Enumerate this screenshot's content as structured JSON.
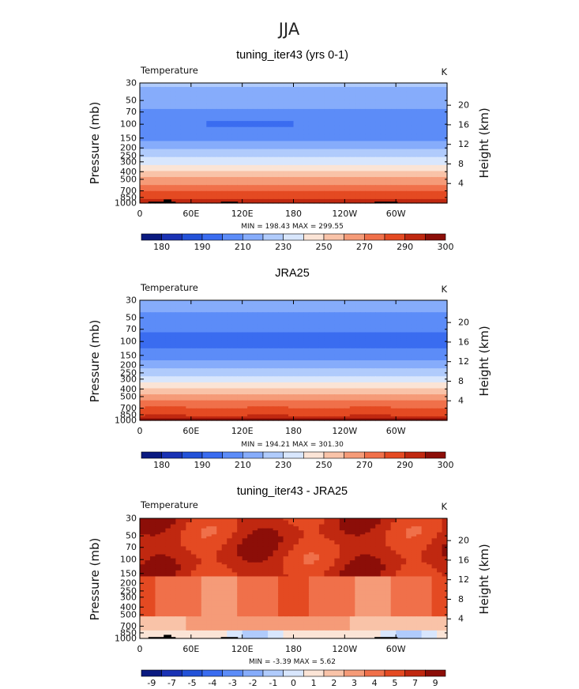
{
  "figure": {
    "title": "JJA"
  },
  "colors": {
    "abs_palette": [
      "#0a1a80",
      "#1a32b4",
      "#2352d8",
      "#3a6cf0",
      "#5c8cf8",
      "#86acfb",
      "#b0cbfc",
      "#d8e6fd",
      "#fbe4d6",
      "#f9c3a8",
      "#f59b78",
      "#f0704a",
      "#e44a22",
      "#c02810",
      "#8c0e08"
    ],
    "diff_palette": [
      "#0a1a80",
      "#1a32b4",
      "#2352d8",
      "#3a6cf0",
      "#5c8cf8",
      "#86acfb",
      "#b0cbfc",
      "#d8e6fd",
      "#fbe4d6",
      "#f9c3a8",
      "#f59b78",
      "#f0704a",
      "#e44a22",
      "#c02810",
      "#8c0e08"
    ]
  },
  "chart_data": [
    {
      "type": "heatmap",
      "title": "tuning_iter43 (yrs 0-1)",
      "variable_label": "Temperature",
      "units_label": "K",
      "ylabel": "Pressure (mb)",
      "ylabel_right": "Height (km)",
      "x_ticks": [
        "0",
        "60E",
        "120E",
        "180",
        "120W",
        "60W"
      ],
      "x_tick_values": [
        0,
        60,
        120,
        180,
        240,
        300
      ],
      "xlim": [
        0,
        360
      ],
      "y_ticks": [
        "30",
        "50",
        "70",
        "100",
        "150",
        "200",
        "250",
        "300",
        "400",
        "500",
        "700",
        "850",
        "1000"
      ],
      "y_tick_values": [
        30,
        50,
        70,
        100,
        150,
        200,
        250,
        300,
        400,
        500,
        700,
        850,
        1000
      ],
      "ylim": [
        1000,
        30
      ],
      "y_scale": "log",
      "right_ticks": [
        "20",
        "16",
        "12",
        "8",
        "4"
      ],
      "right_tick_values": [
        20,
        16,
        12,
        8,
        4
      ],
      "stats": "MIN =  198.43   MAX =  299.55",
      "levels": [
        175,
        180,
        185,
        190,
        200,
        210,
        220,
        230,
        240,
        250,
        260,
        270,
        280,
        290,
        295
      ],
      "colorbar_labels": [
        "180",
        "190",
        "210",
        "230",
        "250",
        "270",
        "290",
        "300"
      ],
      "palette": "abs_palette",
      "profile": [
        [
          1000,
          296
        ],
        [
          900,
          290
        ],
        [
          850,
          287
        ],
        [
          700,
          280
        ],
        [
          600,
          272
        ],
        [
          500,
          263
        ],
        [
          400,
          250
        ],
        [
          300,
          236
        ],
        [
          250,
          228
        ],
        [
          200,
          218
        ],
        [
          150,
          208
        ],
        [
          125,
          203
        ],
        [
          100,
          201
        ],
        [
          80,
          204
        ],
        [
          70,
          208
        ],
        [
          60,
          212
        ],
        [
          50,
          214
        ],
        [
          40,
          217
        ],
        [
          30,
          222
        ]
      ],
      "cold_core": {
        "lon_range": [
          80,
          180
        ],
        "pressure": 100,
        "value": 198
      },
      "topography": [
        {
          "lon_range": [
            10,
            42
          ],
          "top_pressure": 960
        },
        {
          "lon_range": [
            28,
            37
          ],
          "top_pressure": 900
        },
        {
          "lon_range": [
            95,
            115
          ],
          "top_pressure": 960
        },
        {
          "lon_range": [
            275,
            302
          ],
          "top_pressure": 960
        }
      ]
    },
    {
      "type": "heatmap",
      "title": "JRA25",
      "variable_label": "Temperature",
      "units_label": "K",
      "ylabel": "Pressure (mb)",
      "ylabel_right": "Height (km)",
      "x_ticks": [
        "0",
        "60E",
        "120E",
        "180",
        "120W",
        "60W"
      ],
      "x_tick_values": [
        0,
        60,
        120,
        180,
        240,
        300
      ],
      "xlim": [
        0,
        360
      ],
      "y_ticks": [
        "30",
        "50",
        "70",
        "100",
        "150",
        "200",
        "250",
        "300",
        "400",
        "500",
        "700",
        "850",
        "1000"
      ],
      "y_tick_values": [
        30,
        50,
        70,
        100,
        150,
        200,
        250,
        300,
        400,
        500,
        700,
        850,
        1000
      ],
      "ylim": [
        1000,
        30
      ],
      "y_scale": "log",
      "right_ticks": [
        "20",
        "16",
        "12",
        "8",
        "4"
      ],
      "right_tick_values": [
        20,
        16,
        12,
        8,
        4
      ],
      "stats": "MIN =  194.21   MAX =  301.30",
      "levels": [
        175,
        180,
        185,
        190,
        200,
        210,
        220,
        230,
        240,
        250,
        260,
        270,
        280,
        290,
        295
      ],
      "colorbar_labels": [
        "180",
        "190",
        "210",
        "230",
        "250",
        "270",
        "290",
        "300"
      ],
      "palette": "abs_palette",
      "profile": [
        [
          1000,
          298
        ],
        [
          900,
          292
        ],
        [
          850,
          289
        ],
        [
          700,
          281
        ],
        [
          600,
          273
        ],
        [
          500,
          264
        ],
        [
          400,
          250
        ],
        [
          300,
          235
        ],
        [
          250,
          226
        ],
        [
          200,
          216
        ],
        [
          150,
          205
        ],
        [
          125,
          200
        ],
        [
          100,
          197
        ],
        [
          80,
          199
        ],
        [
          70,
          202
        ],
        [
          60,
          205
        ],
        [
          50,
          207
        ],
        [
          40,
          211
        ],
        [
          30,
          216
        ]
      ],
      "topography": []
    },
    {
      "type": "heatmap",
      "title": "tuning_iter43 - JRA25",
      "variable_label": "Temperature",
      "units_label": "K",
      "ylabel": "Pressure (mb)",
      "ylabel_right": "Height (km)",
      "x_ticks": [
        "0",
        "60E",
        "120E",
        "180",
        "120W",
        "60W"
      ],
      "x_tick_values": [
        0,
        60,
        120,
        180,
        240,
        300
      ],
      "xlim": [
        0,
        360
      ],
      "y_ticks": [
        "30",
        "50",
        "70",
        "100",
        "150",
        "200",
        "250",
        "300",
        "400",
        "500",
        "700",
        "850",
        "1000"
      ],
      "y_tick_values": [
        30,
        50,
        70,
        100,
        150,
        200,
        250,
        300,
        400,
        500,
        700,
        850,
        1000
      ],
      "ylim": [
        1000,
        30
      ],
      "y_scale": "log",
      "right_ticks": [
        "20",
        "16",
        "12",
        "8",
        "4"
      ],
      "right_tick_values": [
        20,
        16,
        12,
        8,
        4
      ],
      "stats": "MIN =  -3.39   MAX =   5.62",
      "levels": [
        -9,
        -8,
        -7,
        -6,
        -5,
        -4,
        -3,
        -2,
        -1,
        0,
        1,
        2,
        3,
        4,
        5
      ],
      "colorbar_labels": [
        "-9",
        "-7",
        "-5",
        "-4",
        "-3",
        "-2",
        "-1",
        "0",
        "1",
        "2",
        "3",
        "4",
        "5",
        "7",
        "9"
      ],
      "palette": "diff_palette",
      "topography": [
        {
          "lon_range": [
            10,
            42
          ],
          "top_pressure": 960
        },
        {
          "lon_range": [
            28,
            37
          ],
          "top_pressure": 900
        },
        {
          "lon_range": [
            95,
            115
          ],
          "top_pressure": 960
        },
        {
          "lon_range": [
            275,
            302
          ],
          "top_pressure": 960
        }
      ]
    }
  ]
}
